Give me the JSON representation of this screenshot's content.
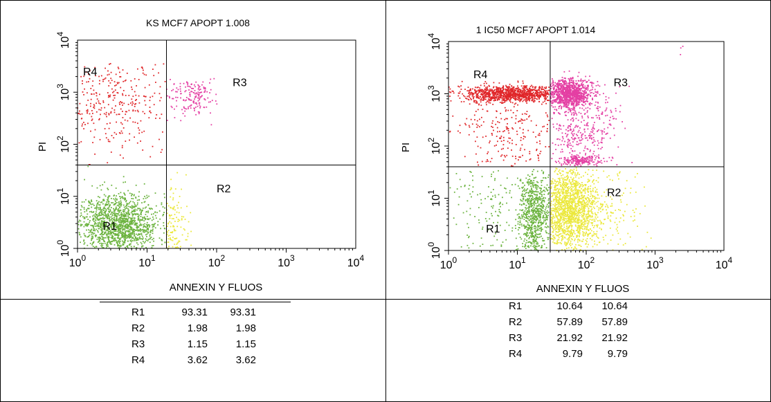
{
  "chart_data": [
    {
      "type": "scatter",
      "title": "KS MCF7 APOPT 1.008",
      "xlabel": "ANNEXIN Y FLUOS",
      "ylabel": "PI",
      "xscale": "log",
      "yscale": "log",
      "xlim": [
        1,
        10000
      ],
      "ylim": [
        1,
        10000
      ],
      "gate_x": 19,
      "gate_y": 40,
      "x_ticks": [
        {
          "base": "10",
          "exp": "0"
        },
        {
          "base": "10",
          "exp": "1"
        },
        {
          "base": "10",
          "exp": "2"
        },
        {
          "base": "10",
          "exp": "3"
        },
        {
          "base": "10",
          "exp": "4"
        }
      ],
      "y_ticks": [
        {
          "base": "10",
          "exp": "0"
        },
        {
          "base": "10",
          "exp": "1"
        },
        {
          "base": "10",
          "exp": "2"
        },
        {
          "base": "10",
          "exp": "3"
        },
        {
          "base": "10",
          "exp": "4"
        }
      ],
      "region_labels": [
        {
          "text": "R1",
          "x": 2.3,
          "y": 2.3
        },
        {
          "text": "R2",
          "x": 100,
          "y": 12
        },
        {
          "text": "R3",
          "x": 170,
          "y": 1300
        },
        {
          "text": "R4",
          "x": 1.2,
          "y": 2100
        }
      ],
      "series": [
        {
          "name": "R1",
          "color": "#6cb33f",
          "clusters": [
            {
              "n": 1400,
              "cx": 0.6,
              "cy": 0.45,
              "sx": 0.28,
              "sy": 0.3,
              "xmin": 0,
              "xmax": 1.26,
              "ymin": 0,
              "ymax": 1.58
            }
          ]
        },
        {
          "name": "R2",
          "color": "#ebe83c",
          "clusters": [
            {
              "n": 110,
              "cx": 1.35,
              "cy": 0.35,
              "sx": 0.12,
              "sy": 0.4,
              "xmin": 1.28,
              "xmax": 1.9,
              "ymin": 0,
              "ymax": 1.58
            }
          ]
        },
        {
          "name": "R3",
          "color": "#e43fa3",
          "clusters": [
            {
              "n": 170,
              "cx": 1.65,
              "cy": 2.9,
              "sx": 0.18,
              "sy": 0.18,
              "xmin": 1.28,
              "xmax": 2.5,
              "ymin": 2.2,
              "ymax": 3.3
            }
          ]
        },
        {
          "name": "R4",
          "color": "#e0272a",
          "clusters": [
            {
              "n": 300,
              "cx": 0.5,
              "cy": 2.8,
              "sx": 0.55,
              "sy": 0.55,
              "xmin": 0,
              "xmax": 1.26,
              "ymin": 1.6,
              "ymax": 3.55
            }
          ]
        }
      ],
      "stats": [
        {
          "region": "R1",
          "v1": "93.31",
          "v2": "93.31"
        },
        {
          "region": "R2",
          "v1": "1.98",
          "v2": "1.98"
        },
        {
          "region": "R3",
          "v1": "1.15",
          "v2": "1.15"
        },
        {
          "region": "R4",
          "v1": "3.62",
          "v2": "3.62"
        }
      ]
    },
    {
      "type": "scatter",
      "title": "1 IC50 MCF7 APOPT 1.014",
      "xlabel": "ANNEXIN Y FLUOS",
      "ylabel": "PI",
      "xscale": "log",
      "yscale": "log",
      "xlim": [
        1,
        10000
      ],
      "ylim": [
        1,
        10000
      ],
      "gate_x": 30,
      "gate_y": 40,
      "x_ticks": [
        {
          "base": "10",
          "exp": "0"
        },
        {
          "base": "10",
          "exp": "1"
        },
        {
          "base": "10",
          "exp": "2"
        },
        {
          "base": "10",
          "exp": "3"
        },
        {
          "base": "10",
          "exp": "4"
        }
      ],
      "y_ticks": [
        {
          "base": "10",
          "exp": "0"
        },
        {
          "base": "10",
          "exp": "1"
        },
        {
          "base": "10",
          "exp": "2"
        },
        {
          "base": "10",
          "exp": "3"
        },
        {
          "base": "10",
          "exp": "4"
        }
      ],
      "region_labels": [
        {
          "text": "R1",
          "x": 3.5,
          "y": 2.2
        },
        {
          "text": "R2",
          "x": 200,
          "y": 11
        },
        {
          "text": "R3",
          "x": 250,
          "y": 1400
        },
        {
          "text": "R4",
          "x": 2.3,
          "y": 2000
        }
      ],
      "series": [
        {
          "name": "R1",
          "color": "#6cb33f",
          "clusters": [
            {
              "n": 700,
              "cx": 1.25,
              "cy": 0.7,
              "sx": 0.12,
              "sy": 0.42,
              "xmin": 0,
              "xmax": 1.46,
              "ymin": 0,
              "ymax": 1.58
            },
            {
              "n": 140,
              "cx": 0.6,
              "cy": 0.7,
              "sx": 0.4,
              "sy": 0.5,
              "xmin": 0,
              "xmax": 1.46,
              "ymin": 0,
              "ymax": 1.58
            }
          ]
        },
        {
          "name": "R2",
          "color": "#ebe83c",
          "clusters": [
            {
              "n": 1500,
              "cx": 1.75,
              "cy": 0.8,
              "sx": 0.22,
              "sy": 0.4,
              "xmin": 1.48,
              "xmax": 2.6,
              "ymin": 0,
              "ymax": 1.58
            },
            {
              "n": 120,
              "cx": 2.35,
              "cy": 0.7,
              "sx": 0.3,
              "sy": 0.4,
              "xmin": 1.48,
              "xmax": 3.0,
              "ymin": 0,
              "ymax": 1.58
            }
          ]
        },
        {
          "name": "R3",
          "color": "#e43fa3",
          "clusters": [
            {
              "n": 1000,
              "cx": 1.75,
              "cy": 3.0,
              "sx": 0.16,
              "sy": 0.13,
              "xmin": 1.48,
              "xmax": 3.4,
              "ymin": 1.6,
              "ymax": 3.5
            },
            {
              "n": 350,
              "cx": 1.95,
              "cy": 2.3,
              "sx": 0.28,
              "sy": 0.4,
              "xmin": 1.48,
              "xmax": 3.0,
              "ymin": 1.6,
              "ymax": 3.5
            },
            {
              "n": 200,
              "cx": 1.9,
              "cy": 1.72,
              "sx": 0.15,
              "sy": 0.05,
              "xmin": 1.48,
              "xmax": 2.4,
              "ymin": 1.6,
              "ymax": 1.85
            },
            {
              "n": 3,
              "cx": 3.4,
              "cy": 3.8,
              "sx": 0.05,
              "sy": 0.05,
              "xmin": 3.3,
              "xmax": 3.5,
              "ymin": 3.6,
              "ymax": 3.95
            }
          ]
        },
        {
          "name": "R4",
          "color": "#e0272a",
          "clusters": [
            {
              "n": 1000,
              "cx": 0.9,
              "cy": 3.0,
              "sx": 0.36,
              "sy": 0.08,
              "xmin": 0,
              "xmax": 1.46,
              "ymin": 2.75,
              "ymax": 3.25
            },
            {
              "n": 250,
              "cx": 0.9,
              "cy": 2.4,
              "sx": 0.45,
              "sy": 0.5,
              "xmin": 0,
              "xmax": 1.46,
              "ymin": 1.6,
              "ymax": 3.3
            }
          ]
        }
      ],
      "stats": [
        {
          "region": "R1",
          "v1": "10.64",
          "v2": "10.64"
        },
        {
          "region": "R2",
          "v1": "57.89",
          "v2": "57.89"
        },
        {
          "region": "R3",
          "v1": "21.92",
          "v2": "21.92"
        },
        {
          "region": "R4",
          "v1": "9.79",
          "v2": "9.79"
        }
      ]
    }
  ]
}
